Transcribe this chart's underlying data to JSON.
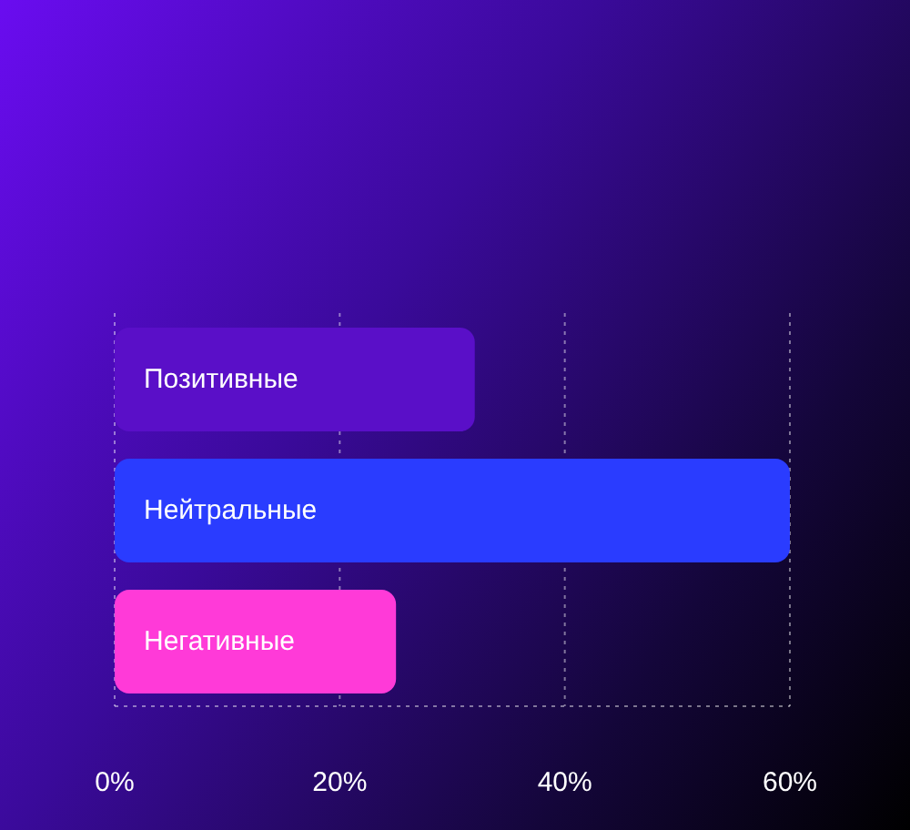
{
  "chart_data": {
    "type": "bar",
    "orientation": "horizontal",
    "categories": [
      "Позитивные",
      "Нейтральные",
      "Негативные"
    ],
    "values": [
      32,
      60,
      25
    ],
    "colors": [
      "#5a0fc8",
      "#2a3cff",
      "#ff3ad8"
    ],
    "xlim": [
      0,
      60
    ],
    "xticks": [
      {
        "value": 0,
        "label": "0%"
      },
      {
        "value": 20,
        "label": "20%"
      },
      {
        "value": 40,
        "label": "40%"
      },
      {
        "value": 60,
        "label": "60%"
      }
    ],
    "grid": "x"
  }
}
